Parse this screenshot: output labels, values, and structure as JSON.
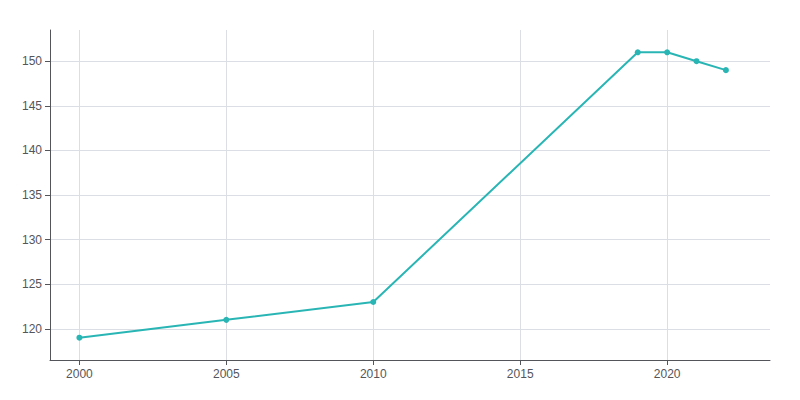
{
  "chart_data": {
    "type": "line",
    "x": [
      2000,
      2005,
      2010,
      2019,
      2020,
      2021,
      2022
    ],
    "values": [
      119,
      121,
      123,
      151,
      151,
      150,
      149
    ],
    "color": "#2ab5b5",
    "marker": "circle",
    "xlim": [
      1999.0,
      2023.5
    ],
    "ylim": [
      116.5,
      153.5
    ],
    "xticks": [
      2000,
      2005,
      2010,
      2015,
      2020
    ],
    "yticks": [
      120,
      125,
      130,
      135,
      140,
      145,
      150
    ],
    "grid": true
  }
}
